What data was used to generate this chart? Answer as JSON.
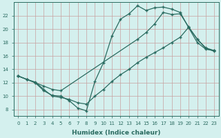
{
  "title": "",
  "xlabel": "Humidex (Indice chaleur)",
  "ylabel": "",
  "bg_color": "#d4f0ee",
  "grid_color": "#c8a0a0",
  "line_color": "#2a6b60",
  "line1_x": [
    0,
    1,
    2,
    3,
    4,
    5,
    6,
    7,
    8,
    9,
    10,
    11,
    12,
    13,
    14,
    15,
    16,
    17,
    18,
    19,
    20,
    21,
    22,
    23
  ],
  "line1_y": [
    13.0,
    12.5,
    12.0,
    10.8,
    10.1,
    10.0,
    9.3,
    8.2,
    7.8,
    12.2,
    15.0,
    19.0,
    21.5,
    22.3,
    23.5,
    22.8,
    23.2,
    23.3,
    23.0,
    22.5,
    20.2,
    18.0,
    17.0,
    16.8
  ],
  "line2_x": [
    0,
    1,
    2,
    3,
    4,
    5,
    14,
    15,
    16,
    17,
    18,
    19,
    20,
    21,
    22,
    23
  ],
  "line2_y": [
    13.0,
    12.5,
    12.0,
    11.5,
    11.0,
    10.8,
    18.5,
    19.5,
    20.8,
    22.5,
    22.2,
    22.3,
    20.3,
    18.5,
    17.2,
    16.8
  ],
  "line3_x": [
    0,
    1,
    2,
    3,
    4,
    5,
    6,
    7,
    8,
    9,
    10,
    11,
    12,
    13,
    14,
    15,
    16,
    17,
    18,
    19,
    20,
    21,
    22,
    23
  ],
  "line3_y": [
    13.0,
    12.5,
    12.1,
    11.0,
    10.0,
    9.8,
    9.5,
    9.0,
    8.8,
    10.0,
    11.0,
    12.2,
    13.2,
    14.0,
    15.0,
    15.8,
    16.5,
    17.2,
    18.0,
    18.8,
    20.3,
    18.5,
    17.1,
    16.7
  ],
  "xlim": [
    -0.5,
    23.5
  ],
  "ylim": [
    7,
    24
  ],
  "xticks": [
    0,
    1,
    2,
    3,
    4,
    5,
    6,
    7,
    8,
    9,
    10,
    11,
    12,
    13,
    14,
    15,
    16,
    17,
    18,
    19,
    20,
    21,
    22,
    23
  ],
  "yticks": [
    8,
    10,
    12,
    14,
    16,
    18,
    20,
    22
  ],
  "tick_fontsize": 5.0,
  "xlabel_fontsize": 6.5,
  "marker_size": 3.5,
  "linewidth": 0.9
}
